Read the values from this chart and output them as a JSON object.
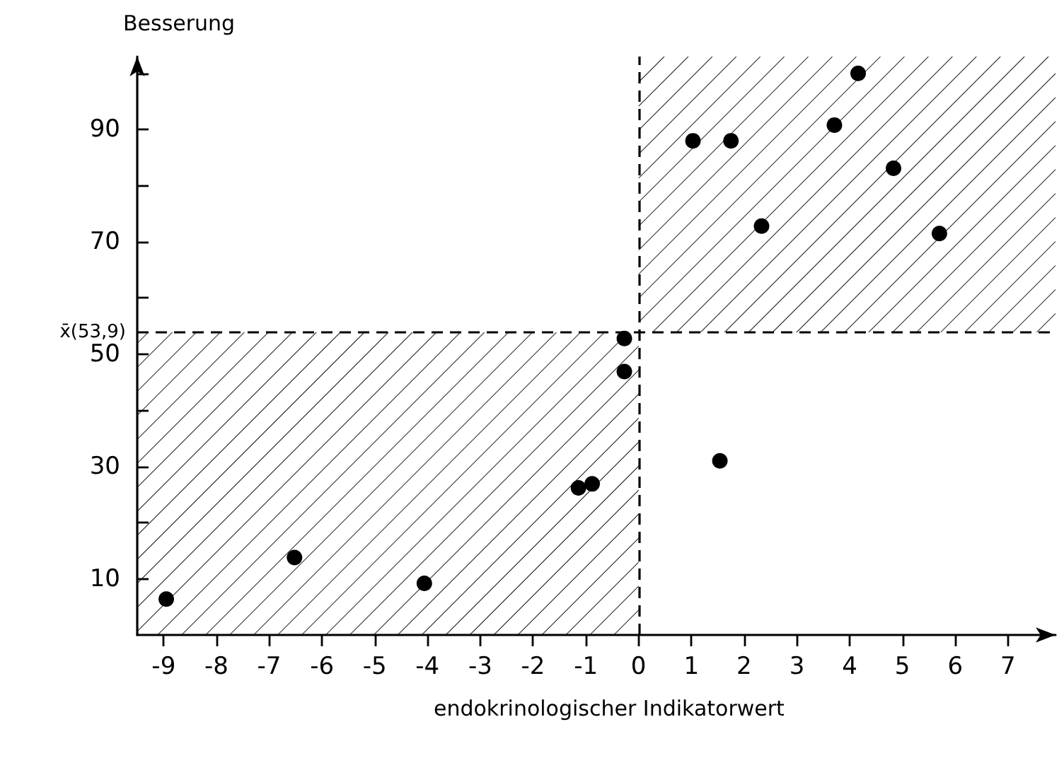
{
  "chart_data": {
    "type": "scatter",
    "xlabel": "endokrinologischer Indikatorwert",
    "ylabel": "Besserung",
    "x": [
      -8.95,
      -6.52,
      -4.06,
      -1.14,
      -0.88,
      -0.27,
      -0.27,
      1.03,
      1.75,
      2.33,
      3.71,
      4.16,
      4.83,
      5.7,
      1.54
    ],
    "series": [
      {
        "color": "#000000",
        "values": [
          6.4,
          13.8,
          9.2,
          26.2,
          26.9,
          52.8,
          46.9,
          88,
          88,
          72.8,
          90.8,
          100,
          83.1,
          71.5,
          31
        ]
      }
    ],
    "xlim": [
      -9.5,
      7.9
    ],
    "ylim": [
      0,
      103
    ],
    "xticks": [
      -9,
      -8,
      -7,
      -6,
      -5,
      -4,
      -3,
      -2,
      -1,
      0,
      1,
      2,
      3,
      4,
      5,
      6,
      7
    ],
    "yticks": [
      10,
      {
        "value": 20,
        "label": null
      },
      30,
      {
        "value": 40,
        "label": null
      },
      50,
      {
        "value": 60,
        "label": null
      },
      70,
      {
        "value": 80,
        "label": null
      },
      90,
      {
        "value": 100,
        "label": null
      }
    ],
    "ref_lines": [
      {
        "axis": "y",
        "value": 53.9,
        "label": "x̄(53,9)",
        "line_style": "dashed",
        "color": "#000000"
      },
      {
        "axis": "x",
        "value": 0,
        "line_style": "dashed",
        "color": "#000000"
      }
    ],
    "grid": false,
    "marker": "circle"
  }
}
